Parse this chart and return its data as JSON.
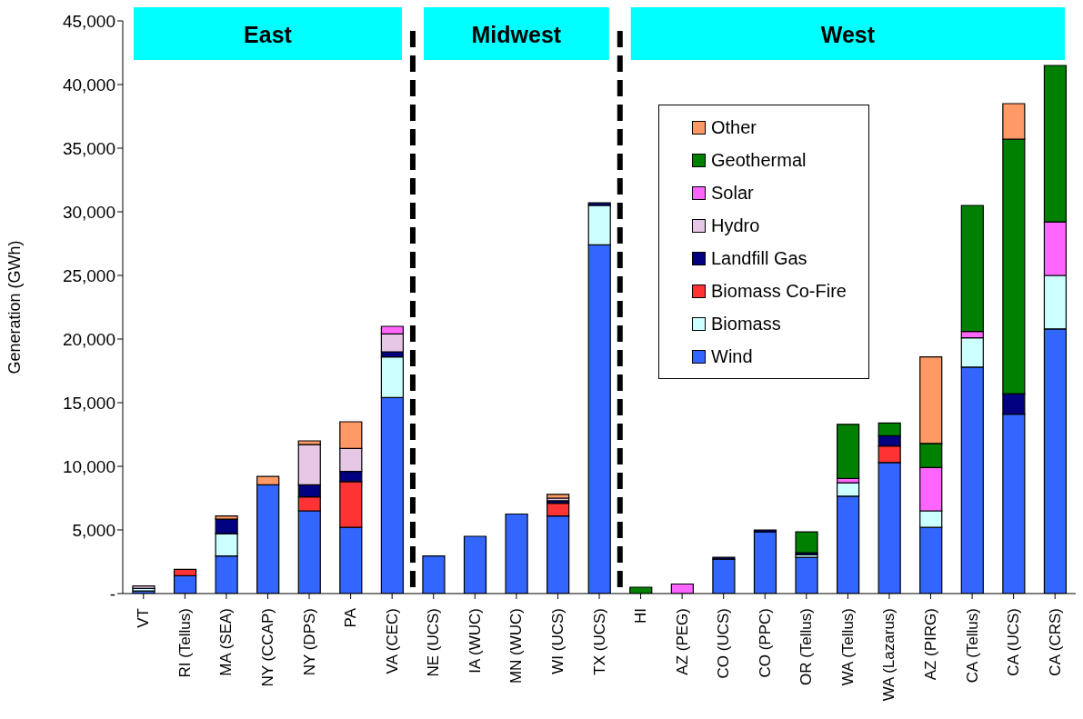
{
  "chart_data": {
    "type": "bar",
    "stacked": true,
    "ylabel": "Generation (GWh)",
    "categories": [
      "VT",
      "RI (Tellus)",
      "MA (SEA)",
      "NY (CCAP)",
      "NY (DPS)",
      "PA",
      "VA (CEC)",
      "NE (UCS)",
      "IA (WUC)",
      "MN (WUC)",
      "WI (UCS)",
      "TX (UCS)",
      "HI",
      "AZ (PEG)",
      "CO (UCS)",
      "CO (PPC)",
      "OR (Tellus)",
      "WA (Tellus)",
      "WA (Lazarus)",
      "AZ (PIRG)",
      "CA (Tellus)",
      "CA (UCS)",
      "CA (CRS)"
    ],
    "series": [
      {
        "name": "Wind",
        "color": "#3366ff",
        "values": [
          200,
          1400,
          2950,
          8550,
          6500,
          5200,
          15400,
          2950,
          4500,
          6250,
          6100,
          27400,
          null,
          0,
          2700,
          4850,
          2850,
          7650,
          10300,
          5200,
          17800,
          14100,
          20800
        ]
      },
      {
        "name": "Biomass",
        "color": "#ccffff",
        "values": [
          200,
          0,
          1750,
          0,
          0,
          0,
          3200,
          0,
          0,
          0,
          0,
          3100,
          0,
          0,
          0,
          0,
          200,
          1050,
          0,
          1300,
          2300,
          0,
          4200
        ]
      },
      {
        "name": "Biomass Co-Fire",
        "color": "#ff3333",
        "values": [
          0,
          500,
          0,
          0,
          1100,
          3600,
          0,
          0,
          0,
          0,
          1000,
          0,
          0,
          0,
          0,
          0,
          0,
          0,
          1300,
          0,
          0,
          0,
          0
        ]
      },
      {
        "name": "Landfill Gas",
        "color": "#000080",
        "values": [
          null,
          0,
          1150,
          0,
          950,
          800,
          400,
          0,
          0,
          0,
          200,
          200,
          0,
          0,
          150,
          150,
          150,
          0,
          800,
          0,
          0,
          1600,
          0
        ]
      },
      {
        "name": "Hydro",
        "color": "#e6c8e6",
        "values": [
          200,
          0,
          0,
          0,
          3150,
          1800,
          1400,
          0,
          0,
          0,
          200,
          0,
          0,
          0,
          0,
          0,
          0,
          0,
          0,
          0,
          0,
          0,
          0
        ]
      },
      {
        "name": "Solar",
        "color": "#ff66ff",
        "values": [
          0,
          0,
          0,
          0,
          0,
          0,
          600,
          0,
          0,
          0,
          0,
          0,
          0,
          750,
          0,
          0,
          0,
          350,
          0,
          3400,
          500,
          0,
          4200
        ]
      },
      {
        "name": "Geothermal",
        "color": "#008000",
        "values": [
          0,
          0,
          0,
          0,
          0,
          0,
          0,
          0,
          0,
          0,
          0,
          0,
          500,
          0,
          0,
          0,
          1650,
          4250,
          1000,
          1900,
          9900,
          20000,
          12300
        ]
      },
      {
        "name": "Other",
        "color": "#ff9966",
        "values": [
          null,
          0,
          250,
          650,
          300,
          2100,
          0,
          0,
          0,
          0,
          300,
          0,
          0,
          0,
          0,
          0,
          0,
          0,
          0,
          6800,
          0,
          2800,
          0
        ]
      }
    ],
    "ylim": [
      0,
      45000
    ],
    "yticks": [
      {
        "value": 0,
        "label": "-"
      },
      {
        "value": 5000,
        "label": "5,000"
      },
      {
        "value": 10000,
        "label": "10,000"
      },
      {
        "value": 15000,
        "label": "15,000"
      },
      {
        "value": 20000,
        "label": "20,000"
      },
      {
        "value": 25000,
        "label": "25,000"
      },
      {
        "value": 30000,
        "label": "30,000"
      },
      {
        "value": 35000,
        "label": "35,000"
      },
      {
        "value": 40000,
        "label": "40,000"
      },
      {
        "value": 45000,
        "label": "45,000"
      }
    ],
    "bands": [
      {
        "axis": "x",
        "from": "VT",
        "to": "VA (CEC)",
        "label": "East",
        "color": "#00ffff"
      },
      {
        "axis": "x",
        "from": "NE (UCS)",
        "to": "TX (UCS)",
        "label": "Midwest",
        "color": "#00ffff"
      },
      {
        "axis": "x",
        "from": "HI",
        "to": "CA (CRS)",
        "label": "West",
        "color": "#00ffff"
      }
    ],
    "legend": "top right",
    "grid": false
  }
}
